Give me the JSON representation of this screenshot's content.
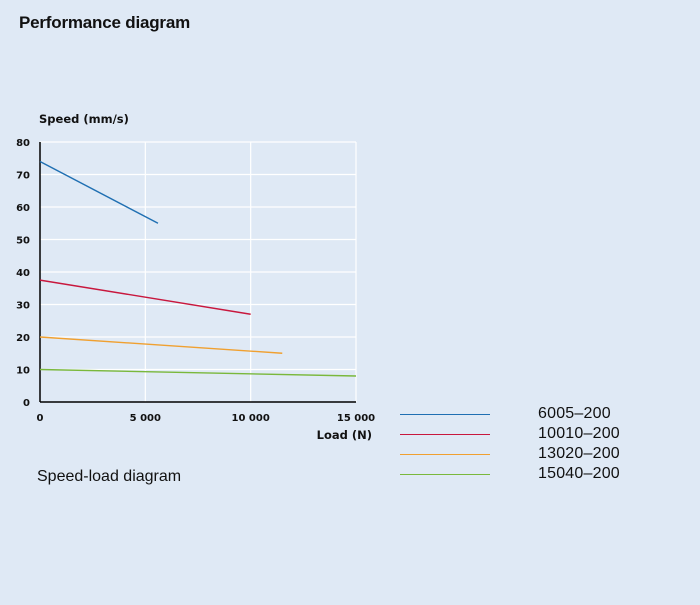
{
  "page": {
    "title": "Performance diagram",
    "caption": "Speed-load diagram"
  },
  "chart_data": {
    "type": "line",
    "xlabel": "Load (N)",
    "ylabel": "Speed (mm/s)",
    "xlim": [
      0,
      15000
    ],
    "ylim": [
      0,
      80
    ],
    "xticks": [
      0,
      5000,
      10000,
      15000
    ],
    "xtick_labels": [
      "0",
      "5 000",
      "10 000",
      "15 000"
    ],
    "yticks": [
      0,
      10,
      20,
      30,
      40,
      50,
      60,
      70,
      80
    ],
    "ytick_labels": [
      "0",
      "10",
      "20",
      "30",
      "40",
      "50",
      "60",
      "70",
      "80"
    ],
    "grid": true,
    "legend_position": "bottom-right",
    "series": [
      {
        "name": "6005–200",
        "color": "#1f6fb2",
        "x": [
          0,
          5600
        ],
        "y": [
          74,
          55
        ]
      },
      {
        "name": "10010–200",
        "color": "#c8173d",
        "x": [
          0,
          10000
        ],
        "y": [
          37.5,
          27
        ]
      },
      {
        "name": "13020–200",
        "color": "#f0a030",
        "x": [
          0,
          11500
        ],
        "y": [
          20,
          15
        ]
      },
      {
        "name": "15040–200",
        "color": "#7ab83c",
        "x": [
          0,
          15000
        ],
        "y": [
          10,
          8
        ]
      }
    ]
  }
}
